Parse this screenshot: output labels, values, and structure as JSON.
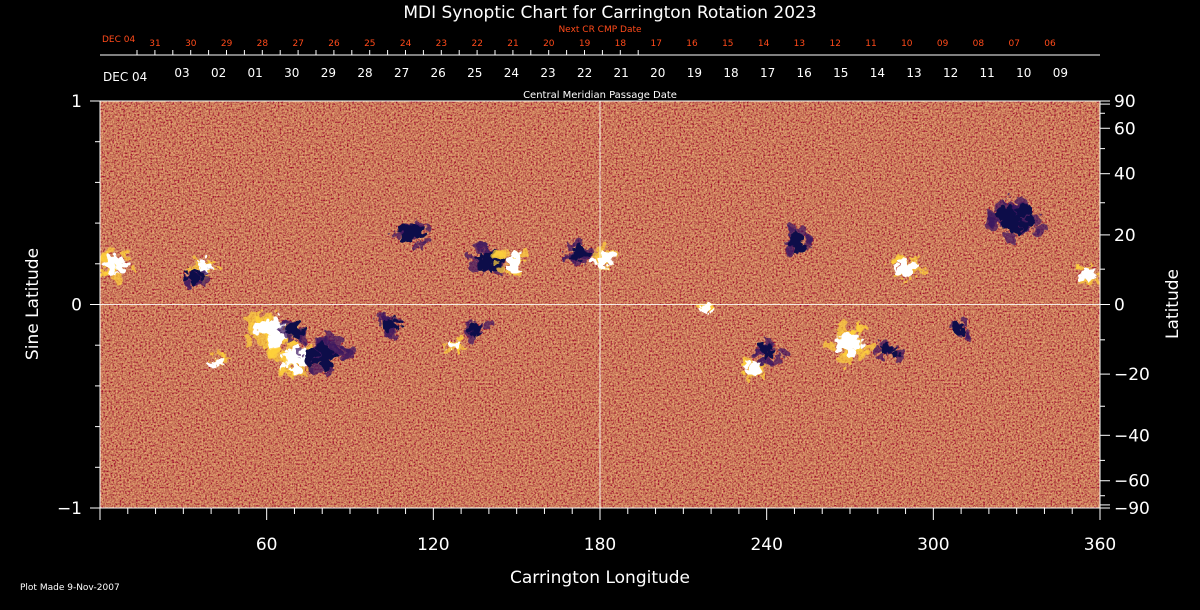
{
  "chart_data": {
    "type": "heatmap",
    "title": "MDI Synoptic Chart for Carrington Rotation 2023",
    "xlabel": "Carrington Longitude",
    "ylabel_left": "Sine Latitude",
    "ylabel_right": "Latitude",
    "xlim": [
      0,
      360
    ],
    "ylim": [
      -1,
      1
    ],
    "x_ticks": [
      "60",
      "120",
      "180",
      "240",
      "300",
      "360"
    ],
    "x_tick_values": [
      60,
      120,
      180,
      240,
      300,
      360
    ],
    "y_left_ticks": [
      "1",
      "0",
      "−1"
    ],
    "y_left_tick_values": [
      1,
      0,
      -1
    ],
    "y_right_ticks": [
      "90",
      "60",
      "40",
      "20",
      "0",
      "−20",
      "−40",
      "−60",
      "−90"
    ],
    "y_right_tick_values": [
      90,
      60,
      40,
      20,
      0,
      -20,
      -40,
      -60,
      -90
    ],
    "cmp_date_label": "Central Meridian Passage Date",
    "cmp_dates": [
      "DEC 04",
      "03",
      "02",
      "01",
      "30",
      "29",
      "28",
      "27",
      "26",
      "25",
      "24",
      "23",
      "22",
      "21",
      "20",
      "19",
      "18",
      "17",
      "16",
      "15",
      "14",
      "13",
      "12",
      "11",
      "10",
      "09"
    ],
    "next_cr_label": "Next CR CMP Date",
    "next_cr_dates": [
      "DEC 04",
      "31",
      "30",
      "29",
      "28",
      "27",
      "26",
      "25",
      "24",
      "23",
      "22",
      "21",
      "20",
      "19",
      "18",
      "17",
      "16",
      "15",
      "14",
      "13",
      "12",
      "11",
      "10",
      "09",
      "08",
      "07",
      "06"
    ],
    "grid": "crosshair at longitude 180 and sine latitude 0",
    "colors": {
      "background": "#000000",
      "field_base": "#e8541c",
      "positive_polarity": "#ffffff",
      "negative_polarity": "#10104a",
      "axes": "#ffffff",
      "next_cr_text": "#ff4a1a"
    },
    "regions": [
      {
        "polarity": "positive",
        "lon": 5,
        "sinlat": 0.2,
        "size": 8
      },
      {
        "polarity": "positive",
        "lon": 38,
        "sinlat": 0.19,
        "size": 6
      },
      {
        "polarity": "negative",
        "lon": 34,
        "sinlat": 0.14,
        "size": 7
      },
      {
        "polarity": "positive",
        "lon": 63,
        "sinlat": -0.14,
        "size": 12
      },
      {
        "polarity": "positive",
        "lon": 70,
        "sinlat": -0.27,
        "size": 10
      },
      {
        "polarity": "negative",
        "lon": 80,
        "sinlat": -0.25,
        "size": 11
      },
      {
        "polarity": "negative",
        "lon": 70,
        "sinlat": -0.13,
        "size": 7
      },
      {
        "polarity": "positive",
        "lon": 42,
        "sinlat": -0.28,
        "size": 5
      },
      {
        "polarity": "negative",
        "lon": 112,
        "sinlat": 0.36,
        "size": 9
      },
      {
        "polarity": "negative",
        "lon": 140,
        "sinlat": 0.22,
        "size": 9
      },
      {
        "polarity": "positive",
        "lon": 148,
        "sinlat": 0.21,
        "size": 8
      },
      {
        "polarity": "negative",
        "lon": 172,
        "sinlat": 0.25,
        "size": 7
      },
      {
        "polarity": "positive",
        "lon": 181,
        "sinlat": 0.22,
        "size": 7
      },
      {
        "polarity": "negative",
        "lon": 135,
        "sinlat": -0.12,
        "size": 6
      },
      {
        "polarity": "positive",
        "lon": 128,
        "sinlat": -0.2,
        "size": 5
      },
      {
        "polarity": "negative",
        "lon": 105,
        "sinlat": -0.1,
        "size": 7
      },
      {
        "polarity": "positive",
        "lon": 218,
        "sinlat": -0.02,
        "size": 5
      },
      {
        "polarity": "negative",
        "lon": 240,
        "sinlat": -0.23,
        "size": 7
      },
      {
        "polarity": "positive",
        "lon": 235,
        "sinlat": -0.31,
        "size": 7
      },
      {
        "polarity": "positive",
        "lon": 270,
        "sinlat": -0.19,
        "size": 10
      },
      {
        "polarity": "negative",
        "lon": 284,
        "sinlat": -0.23,
        "size": 6
      },
      {
        "polarity": "negative",
        "lon": 250,
        "sinlat": 0.3,
        "size": 8
      },
      {
        "polarity": "positive",
        "lon": 290,
        "sinlat": 0.18,
        "size": 8
      },
      {
        "polarity": "negative",
        "lon": 330,
        "sinlat": 0.42,
        "size": 12
      },
      {
        "polarity": "positive",
        "lon": 356,
        "sinlat": 0.15,
        "size": 6
      },
      {
        "polarity": "negative",
        "lon": 310,
        "sinlat": -0.12,
        "size": 5
      }
    ]
  },
  "footer": {
    "plot_made": "Plot Made  9-Nov-2007"
  }
}
